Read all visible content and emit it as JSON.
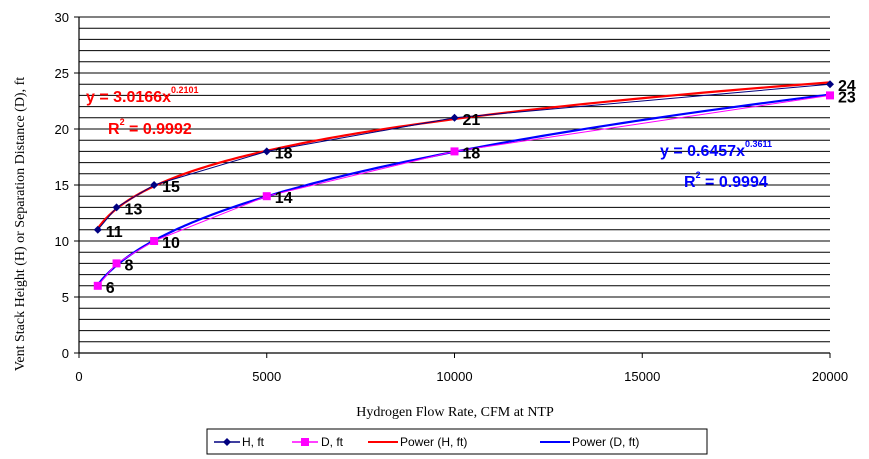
{
  "chart_data": {
    "type": "scatter",
    "xlabel": "Hydrogen Flow Rate, CFM at NTP",
    "ylabel": "Vent Stack Height (H) or Separation Distance (D), ft",
    "xlim": [
      0,
      20000
    ],
    "ylim": [
      0,
      30
    ],
    "x_ticks": [
      "0",
      "5000",
      "10000",
      "15000",
      "20000"
    ],
    "y_ticks": [
      "0",
      "5",
      "10",
      "15",
      "20",
      "25",
      "30"
    ],
    "grid": "horizontal",
    "legend_position": "bottom",
    "series": [
      {
        "name": "H, ft",
        "color": "#000080",
        "marker": "diamond",
        "x": [
          500,
          1000,
          2000,
          5000,
          10000,
          20000
        ],
        "y": [
          11,
          13,
          15,
          18,
          21,
          24
        ],
        "labels": [
          "11",
          "13",
          "15",
          "18",
          "21",
          "24"
        ]
      },
      {
        "name": "D, ft",
        "color": "#ff00ff",
        "marker": "square",
        "x": [
          500,
          1000,
          2000,
          5000,
          10000,
          20000
        ],
        "y": [
          6,
          8,
          10,
          14,
          18,
          23
        ],
        "labels": [
          "6",
          "8",
          "10",
          "14",
          "18",
          "23"
        ]
      }
    ],
    "trendlines": [
      {
        "name": "Power (H, ft)",
        "color": "#ff0000",
        "a": 3.0166,
        "b": 0.2101,
        "equation_main": "y = 3.0166x",
        "equation_exp": "0.2101",
        "r2_main": "R",
        "r2_sup": "2",
        "r2_value": " = 0.9992"
      },
      {
        "name": "Power (D, ft)",
        "color": "#0000ff",
        "a": 0.6457,
        "b": 0.3611,
        "equation_main": "y = 0.6457x",
        "equation_exp": "0.3611",
        "r2_main": "R",
        "r2_sup": "2",
        "r2_value": " = 0.9994"
      }
    ]
  }
}
